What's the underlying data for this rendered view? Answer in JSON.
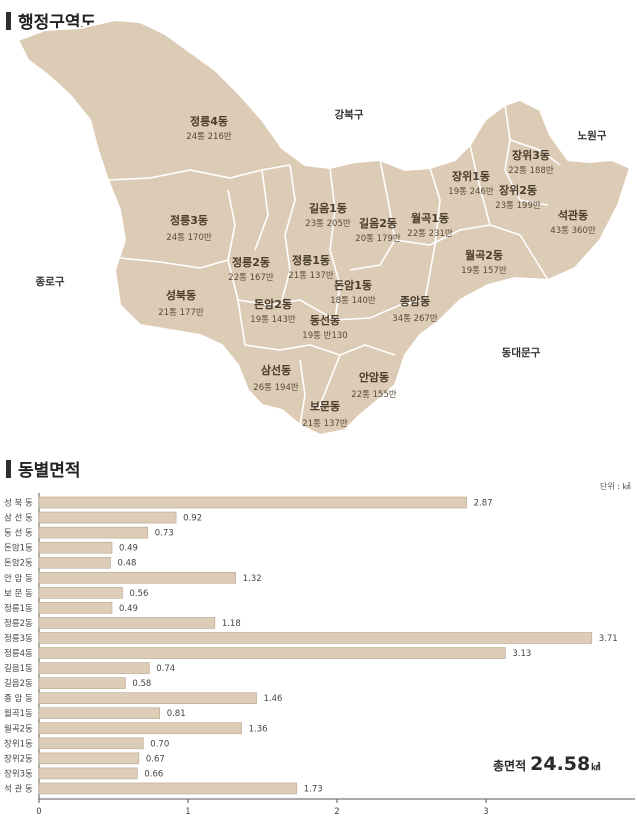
{
  "section_map": {
    "title": "행정구역도"
  },
  "section_area": {
    "title": "동별면적"
  },
  "map": {
    "outer_labels": [
      {
        "id": "gangbuk",
        "name": "강북구"
      },
      {
        "id": "nowon",
        "name": "노원구"
      },
      {
        "id": "jongno",
        "name": "종로구"
      },
      {
        "id": "dongdaemun",
        "name": "동대문구"
      }
    ],
    "regions": [
      {
        "id": "jeongneung4",
        "name": "정릉4동",
        "info": "24통 216반"
      },
      {
        "id": "jeongneung3",
        "name": "정릉3동",
        "info": "24통 170반"
      },
      {
        "id": "seongbuk",
        "name": "성북동",
        "info": "21통 177반"
      },
      {
        "id": "jeongneung2",
        "name": "정릉2동",
        "info": "22통 167반"
      },
      {
        "id": "jeongneung1",
        "name": "정릉1동",
        "info": "21통 137반"
      },
      {
        "id": "gileum1",
        "name": "길음1동",
        "info": "23통 205반"
      },
      {
        "id": "gileum2",
        "name": "길음2동",
        "info": "20통 179반"
      },
      {
        "id": "donam2",
        "name": "돈암2동",
        "info": "19통 143반"
      },
      {
        "id": "donam1",
        "name": "돈암1동",
        "info": "18통 140반"
      },
      {
        "id": "dongseon",
        "name": "동선동",
        "info": "19통 반130"
      },
      {
        "id": "wolgok1",
        "name": "월곡1동",
        "info": "22통 231반"
      },
      {
        "id": "wolgok2",
        "name": "월곡2동",
        "info": "19통 157반"
      },
      {
        "id": "jangwi1",
        "name": "장위1동",
        "info": "19통 246반"
      },
      {
        "id": "jangwi3",
        "name": "장위3동",
        "info": "22통 188반"
      },
      {
        "id": "jangwi2",
        "name": "장위2동",
        "info": "23통 199반"
      },
      {
        "id": "seokgwan",
        "name": "석관동",
        "info": "43통 360반"
      },
      {
        "id": "jongam",
        "name": "종암동",
        "info": "34통 267반"
      },
      {
        "id": "samseon",
        "name": "삼선동",
        "info": "26통 194반"
      },
      {
        "id": "anam",
        "name": "안암동",
        "info": "22통 155반"
      },
      {
        "id": "bomun",
        "name": "보문동",
        "info": "21통 137반"
      }
    ]
  },
  "unit_label": "단위 : ㎢",
  "total": {
    "label": "총면적",
    "value": "24.58",
    "unit": "㎢"
  },
  "colors": {
    "map_fill": "#dccbb5",
    "map_border": "#ffffff",
    "bar_fill": "#ddcdb8",
    "bar_stroke": "#b9a58c",
    "axis": "#555555"
  },
  "chart_data": {
    "type": "bar",
    "orientation": "horizontal",
    "categories": [
      "성 북 동",
      "삼 선 동",
      "동 선 동",
      "돈암1동",
      "돈암2동",
      "안 암 동",
      "보 문 동",
      "정릉1동",
      "정릉2동",
      "정릉3동",
      "정릉4동",
      "길음1동",
      "길음2동",
      "종 암 동",
      "월곡1동",
      "월곡2동",
      "장위1동",
      "장위2동",
      "장위3동",
      "석 관 동"
    ],
    "values": [
      2.87,
      0.92,
      0.73,
      0.49,
      0.48,
      1.32,
      0.56,
      0.49,
      1.18,
      3.71,
      3.13,
      0.74,
      0.58,
      1.46,
      0.81,
      1.36,
      0.7,
      0.67,
      0.66,
      1.73
    ],
    "value_labels": [
      "2.87",
      "0.92",
      "0.73",
      "0.49",
      "0.48",
      "1.32",
      "0.56",
      "0.49",
      "1.18",
      "3.71",
      "3.13",
      "0.74",
      "0.58",
      "1.46",
      "0.81",
      "1.36",
      "0.70",
      "0.67",
      "0.66",
      "1.73"
    ],
    "xlim": [
      0,
      4
    ],
    "xticks": [
      0,
      1,
      2,
      3
    ],
    "title": "동별면적",
    "xlabel": "",
    "ylabel": ""
  }
}
